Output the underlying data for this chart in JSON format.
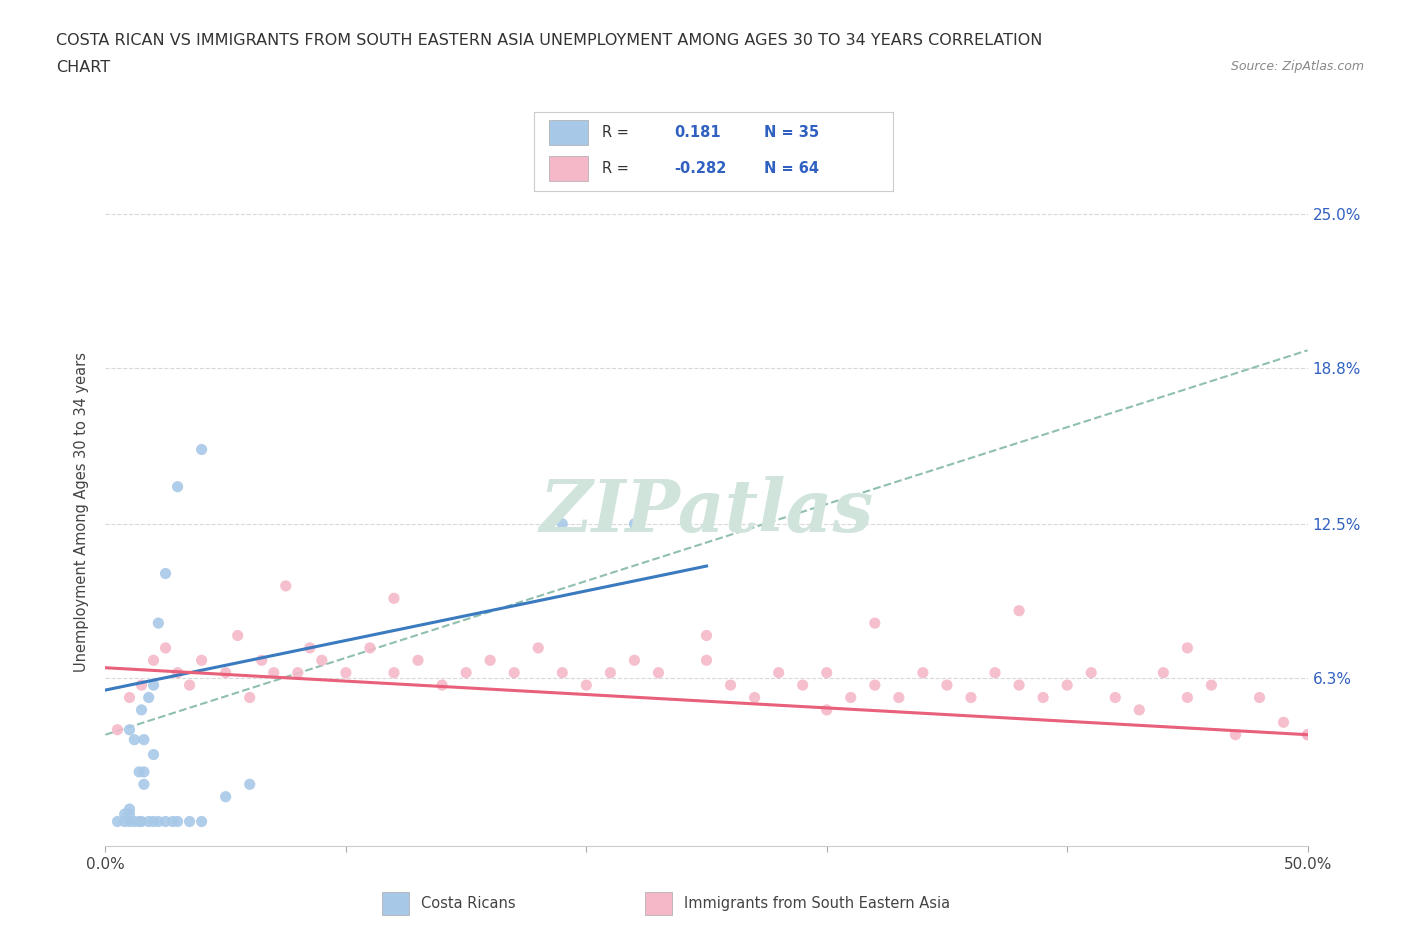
{
  "title_line1": "COSTA RICAN VS IMMIGRANTS FROM SOUTH EASTERN ASIA UNEMPLOYMENT AMONG AGES 30 TO 34 YEARS CORRELATION",
  "title_line2": "CHART",
  "source": "Source: ZipAtlas.com",
  "ylabel": "Unemployment Among Ages 30 to 34 years",
  "xlim": [
    0.0,
    0.5
  ],
  "ylim": [
    -0.005,
    0.265
  ],
  "ytick_positions": [
    0.0,
    0.063,
    0.125,
    0.188,
    0.25
  ],
  "ytick_labels_right": [
    "",
    "6.3%",
    "12.5%",
    "18.8%",
    "25.0%"
  ],
  "blue_R": 0.181,
  "blue_N": 35,
  "pink_R": -0.282,
  "pink_N": 64,
  "blue_color": "#a8c8e8",
  "pink_color": "#f4b8c8",
  "blue_line_color": "#3a7abf",
  "pink_line_color": "#e8607a",
  "dashed_line_color": "#90bfb0",
  "watermark_text": "ZIPatlas",
  "watermark_color": "#d0e4dc",
  "legend_black": "#333333",
  "legend_blue": "#3060c0",
  "blue_scatter_x": [
    0.005,
    0.008,
    0.008,
    0.01,
    0.01,
    0.01,
    0.01,
    0.012,
    0.012,
    0.014,
    0.014,
    0.015,
    0.015,
    0.016,
    0.016,
    0.016,
    0.018,
    0.018,
    0.02,
    0.02,
    0.02,
    0.022,
    0.022,
    0.025,
    0.025,
    0.028,
    0.03,
    0.035,
    0.04,
    0.05,
    0.06,
    0.03,
    0.19,
    0.22,
    0.04
  ],
  "blue_scatter_y": [
    0.005,
    0.005,
    0.008,
    0.005,
    0.008,
    0.01,
    0.042,
    0.005,
    0.038,
    0.005,
    0.025,
    0.005,
    0.05,
    0.02,
    0.025,
    0.038,
    0.005,
    0.055,
    0.005,
    0.032,
    0.06,
    0.005,
    0.085,
    0.005,
    0.105,
    0.005,
    0.005,
    0.005,
    0.005,
    0.015,
    0.02,
    0.14,
    0.125,
    0.125,
    0.155
  ],
  "pink_scatter_x": [
    0.005,
    0.01,
    0.015,
    0.02,
    0.025,
    0.03,
    0.035,
    0.04,
    0.05,
    0.055,
    0.06,
    0.065,
    0.07,
    0.075,
    0.08,
    0.085,
    0.09,
    0.1,
    0.11,
    0.12,
    0.13,
    0.14,
    0.15,
    0.16,
    0.17,
    0.18,
    0.19,
    0.2,
    0.21,
    0.22,
    0.23,
    0.25,
    0.26,
    0.27,
    0.28,
    0.29,
    0.3,
    0.3,
    0.31,
    0.32,
    0.33,
    0.34,
    0.35,
    0.36,
    0.37,
    0.38,
    0.38,
    0.39,
    0.4,
    0.41,
    0.42,
    0.43,
    0.44,
    0.45,
    0.46,
    0.47,
    0.48,
    0.49,
    0.5,
    0.12,
    0.25,
    0.32,
    0.45,
    0.5
  ],
  "pink_scatter_y": [
    0.042,
    0.055,
    0.06,
    0.07,
    0.075,
    0.065,
    0.06,
    0.07,
    0.065,
    0.08,
    0.055,
    0.07,
    0.065,
    0.1,
    0.065,
    0.075,
    0.07,
    0.065,
    0.075,
    0.065,
    0.07,
    0.06,
    0.065,
    0.07,
    0.065,
    0.075,
    0.065,
    0.06,
    0.065,
    0.07,
    0.065,
    0.07,
    0.06,
    0.055,
    0.065,
    0.06,
    0.05,
    0.065,
    0.055,
    0.06,
    0.055,
    0.065,
    0.06,
    0.055,
    0.065,
    0.06,
    0.09,
    0.055,
    0.06,
    0.065,
    0.055,
    0.05,
    0.065,
    0.055,
    0.06,
    0.04,
    0.055,
    0.045,
    0.04,
    0.095,
    0.08,
    0.085,
    0.075,
    0.04
  ],
  "blue_line_x0": 0.0,
  "blue_line_x1": 0.25,
  "blue_line_y0": 0.058,
  "blue_line_y1": 0.108,
  "pink_line_x0": 0.0,
  "pink_line_x1": 0.5,
  "pink_line_y0": 0.067,
  "pink_line_y1": 0.04,
  "dash_line_x0": 0.0,
  "dash_line_x1": 0.5,
  "dash_line_y0": 0.04,
  "dash_line_y1": 0.195
}
